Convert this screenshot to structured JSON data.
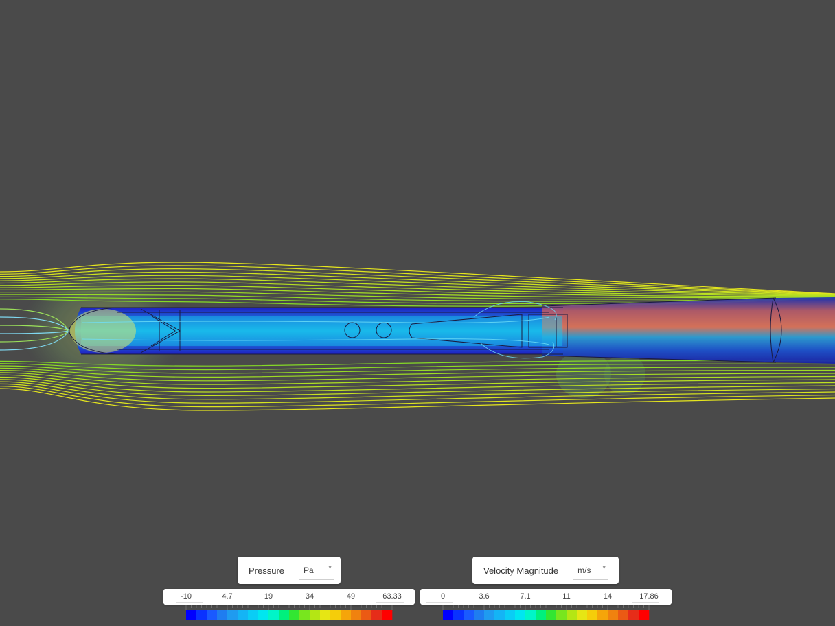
{
  "viewport": {
    "background": "#4a4a4a",
    "scene": "cfd-streamlines-tube-body"
  },
  "legends": [
    {
      "quantity": "Pressure",
      "unit": "Pa",
      "ticks": [
        "-10",
        "4.7",
        "19",
        "34",
        "49",
        "63.33"
      ],
      "min": -10,
      "max": 63.33
    },
    {
      "quantity": "Velocity Magnitude",
      "unit": "m/s",
      "ticks": [
        "0",
        "3.6",
        "7.1",
        "11",
        "14",
        "17.86"
      ],
      "min": 0,
      "max": 17.86
    }
  ],
  "colormap": [
    "#0000ff",
    "#0a32ff",
    "#1a5aff",
    "#1f7df0",
    "#1f9bf0",
    "#14b4f5",
    "#0acdf5",
    "#00e6f0",
    "#00f5c8",
    "#00f07d",
    "#32e632",
    "#78e61e",
    "#b4e614",
    "#e6e614",
    "#f5cd0a",
    "#f5a50a",
    "#f0820f",
    "#eb5a14",
    "#e62d19",
    "#ff0000"
  ],
  "icons": [
    "chevron-down-icon"
  ]
}
